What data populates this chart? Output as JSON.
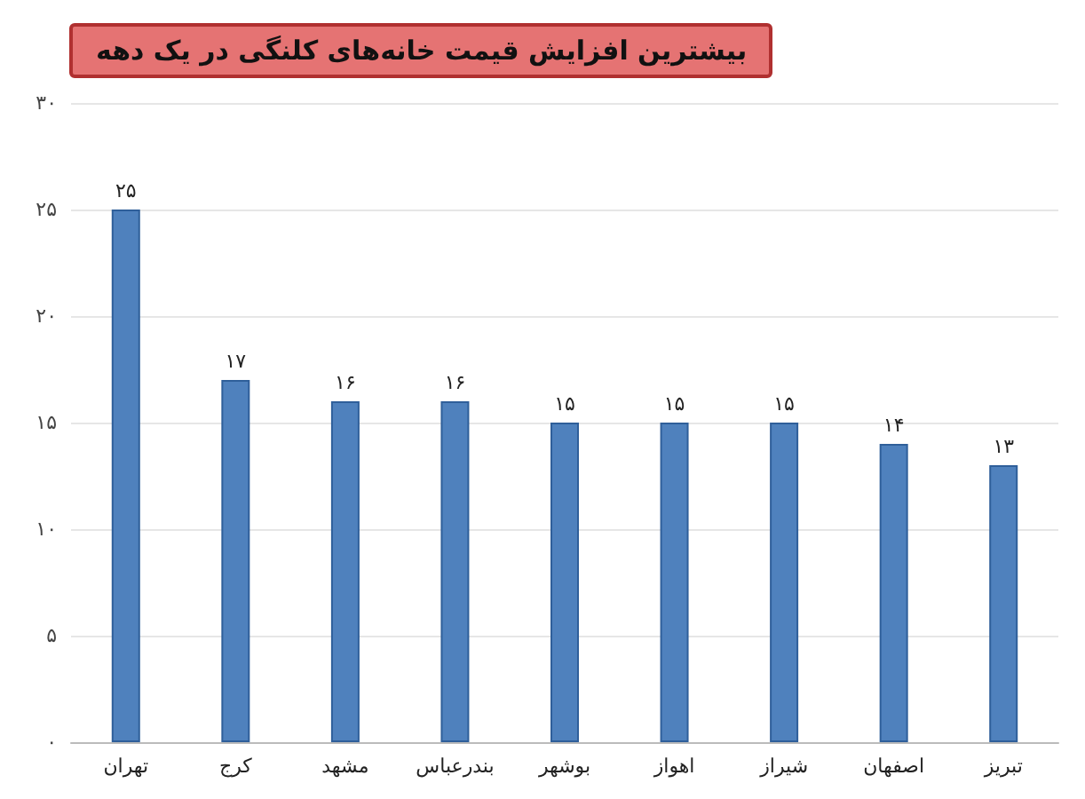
{
  "chart_data": {
    "type": "bar",
    "title": "بیشترین افزایش قیمت خانه‌های کلنگی در یک دهه",
    "categories": [
      "تهران",
      "کرج",
      "مشهد",
      "بندرعباس",
      "بوشهر",
      "اهواز",
      "شیراز",
      "اصفهان",
      "تبریز"
    ],
    "values": [
      25,
      17,
      16,
      16,
      15,
      15,
      15,
      14,
      13
    ],
    "value_labels": [
      "۲۵",
      "۱۷",
      "۱۶",
      "۱۶",
      "۱۵",
      "۱۵",
      "۱۵",
      "۱۴",
      "۱۳"
    ],
    "color": "#4f81bd",
    "ylim": [
      0,
      30
    ],
    "yticks": [
      {
        "value": 0,
        "label": "۰"
      },
      {
        "value": 5,
        "label": "۵"
      },
      {
        "value": 10,
        "label": "۱۰"
      },
      {
        "value": 15,
        "label": "۱۵"
      },
      {
        "value": 20,
        "label": "۲۰"
      },
      {
        "value": 25,
        "label": "۲۵"
      },
      {
        "value": 30,
        "label": "۳۰"
      }
    ],
    "grid": "y"
  }
}
